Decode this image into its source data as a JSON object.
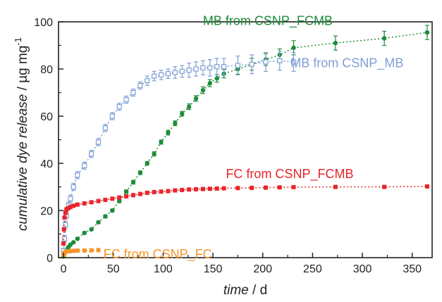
{
  "chart_data": {
    "type": "scatter",
    "xlabel_italic": "time",
    "xlabel_unit": " / d",
    "ylabel_italic": "cumulative dye release",
    "ylabel_unit": " / µg mg",
    "ylabel_unit_sup": "-1",
    "xlim": [
      -5,
      370
    ],
    "ylim": [
      0,
      100
    ],
    "x_ticks": [
      0,
      50,
      100,
      150,
      200,
      250,
      300,
      350
    ],
    "y_ticks": [
      0,
      20,
      40,
      60,
      80,
      100
    ],
    "grid": false,
    "series": [
      {
        "name": "MB from CSNP_FCMB",
        "color": "#1e8c3a",
        "marker": "filled-circle",
        "label_x": 140,
        "label_y": 100.5,
        "x": [
          0,
          1,
          2,
          3,
          5,
          7,
          10,
          14,
          21,
          28,
          35,
          42,
          49,
          56,
          63,
          70,
          77,
          84,
          91,
          98,
          105,
          112,
          119,
          126,
          133,
          140,
          147,
          154,
          161,
          175,
          189,
          203,
          217,
          231,
          273,
          322,
          365
        ],
        "y": [
          0.5,
          2.5,
          3,
          3.5,
          4.5,
          5.5,
          6.5,
          8,
          10.5,
          12,
          15,
          17.5,
          20,
          24,
          28,
          32,
          36,
          40,
          44,
          49,
          53,
          57,
          61,
          64,
          67.5,
          71,
          74,
          76,
          78,
          80,
          82,
          84,
          86,
          89,
          91,
          93,
          95.5
        ],
        "err": [
          0.3,
          0.3,
          0.3,
          0.3,
          0.4,
          0.4,
          0.4,
          0.4,
          0.5,
          0.5,
          0.5,
          0.6,
          0.6,
          0.7,
          0.7,
          0.8,
          0.8,
          0.8,
          0.9,
          0.9,
          1,
          1,
          1,
          1.2,
          1.2,
          1.4,
          1.5,
          1.6,
          1.8,
          2.2,
          2.5,
          2.5,
          2.5,
          3,
          3,
          3,
          3
        ]
      },
      {
        "name": "MB from CSNP_MB",
        "color": "#7f9fd4",
        "marker": "open-square",
        "label_x": 228,
        "label_y": 82.5,
        "x": [
          0,
          1,
          2,
          3,
          5,
          7,
          10,
          14,
          21,
          28,
          35,
          42,
          49,
          56,
          63,
          70,
          77,
          84,
          91,
          98,
          105,
          112,
          119,
          126,
          133,
          140,
          147,
          154,
          161,
          175,
          189,
          203,
          217,
          231
        ],
        "y": [
          3,
          8,
          14,
          18,
          22,
          25,
          30,
          35,
          39,
          44,
          49,
          55,
          60,
          64,
          67,
          70,
          73,
          75,
          77,
          77.5,
          78,
          78.5,
          79,
          79.5,
          80,
          80.5,
          80.5,
          81,
          81,
          81.5,
          82,
          83,
          83.5,
          83
        ],
        "err": [
          1,
          1.5,
          1.5,
          1.5,
          1.5,
          1.5,
          1.5,
          1.5,
          1.5,
          1.5,
          1.5,
          1.5,
          1.5,
          1.5,
          1.5,
          1.5,
          1.5,
          2,
          2,
          2,
          2,
          2.5,
          2.5,
          3,
          3,
          3,
          3.5,
          3.5,
          3.5,
          4,
          4,
          4,
          4,
          4
        ]
      },
      {
        "name": "FC from CSNP_FCMB",
        "color": "#e8242a",
        "marker": "filled-square",
        "label_x": 163,
        "label_y": 35.5,
        "x": [
          0,
          0.5,
          1,
          2,
          3,
          5,
          7,
          10,
          14,
          21,
          28,
          35,
          42,
          49,
          56,
          63,
          70,
          77,
          84,
          91,
          98,
          105,
          112,
          119,
          126,
          133,
          140,
          147,
          154,
          161,
          175,
          189,
          203,
          217,
          231,
          273,
          322,
          365
        ],
        "y": [
          6,
          12,
          17,
          19,
          20.5,
          21,
          21.5,
          22,
          22.5,
          23,
          23.5,
          24,
          24.5,
          25,
          25.5,
          26,
          26.5,
          27,
          27.5,
          27.8,
          28,
          28.2,
          28.5,
          28.7,
          28.9,
          29,
          29.1,
          29.2,
          29.3,
          29.4,
          29.5,
          29.6,
          29.7,
          29.8,
          29.9,
          30,
          30,
          30.2
        ],
        "err": [
          0.3,
          0.3,
          0.3,
          0.3,
          0.3,
          0.3,
          0.3,
          0.3,
          0.3,
          0.3,
          0.3,
          0.3,
          0.3,
          0.3,
          0.3,
          0.3,
          0.3,
          0.3,
          0.3,
          0.3,
          0.3,
          0.3,
          0.3,
          0.3,
          0.3,
          0.3,
          0.3,
          0.3,
          0.3,
          0.3,
          0.3,
          0.3,
          0.3,
          0.3,
          0.3,
          0.3,
          0.3,
          0.3
        ]
      },
      {
        "name": "FC from CSNP_FC",
        "color": "#f5962a",
        "marker": "filled-square",
        "label_x": 40,
        "label_y": 1.5,
        "x": [
          0,
          0.5,
          1,
          2,
          3,
          5,
          7,
          10,
          14,
          21,
          28,
          35
        ],
        "y": [
          1,
          1.5,
          2,
          2.5,
          2.6,
          2.7,
          2.8,
          2.9,
          3,
          3,
          3.1,
          3.2
        ],
        "err": [
          0.2,
          0.2,
          0.2,
          0.2,
          0.2,
          0.2,
          0.2,
          0.2,
          0.2,
          0.2,
          0.2,
          0.2
        ]
      }
    ]
  }
}
